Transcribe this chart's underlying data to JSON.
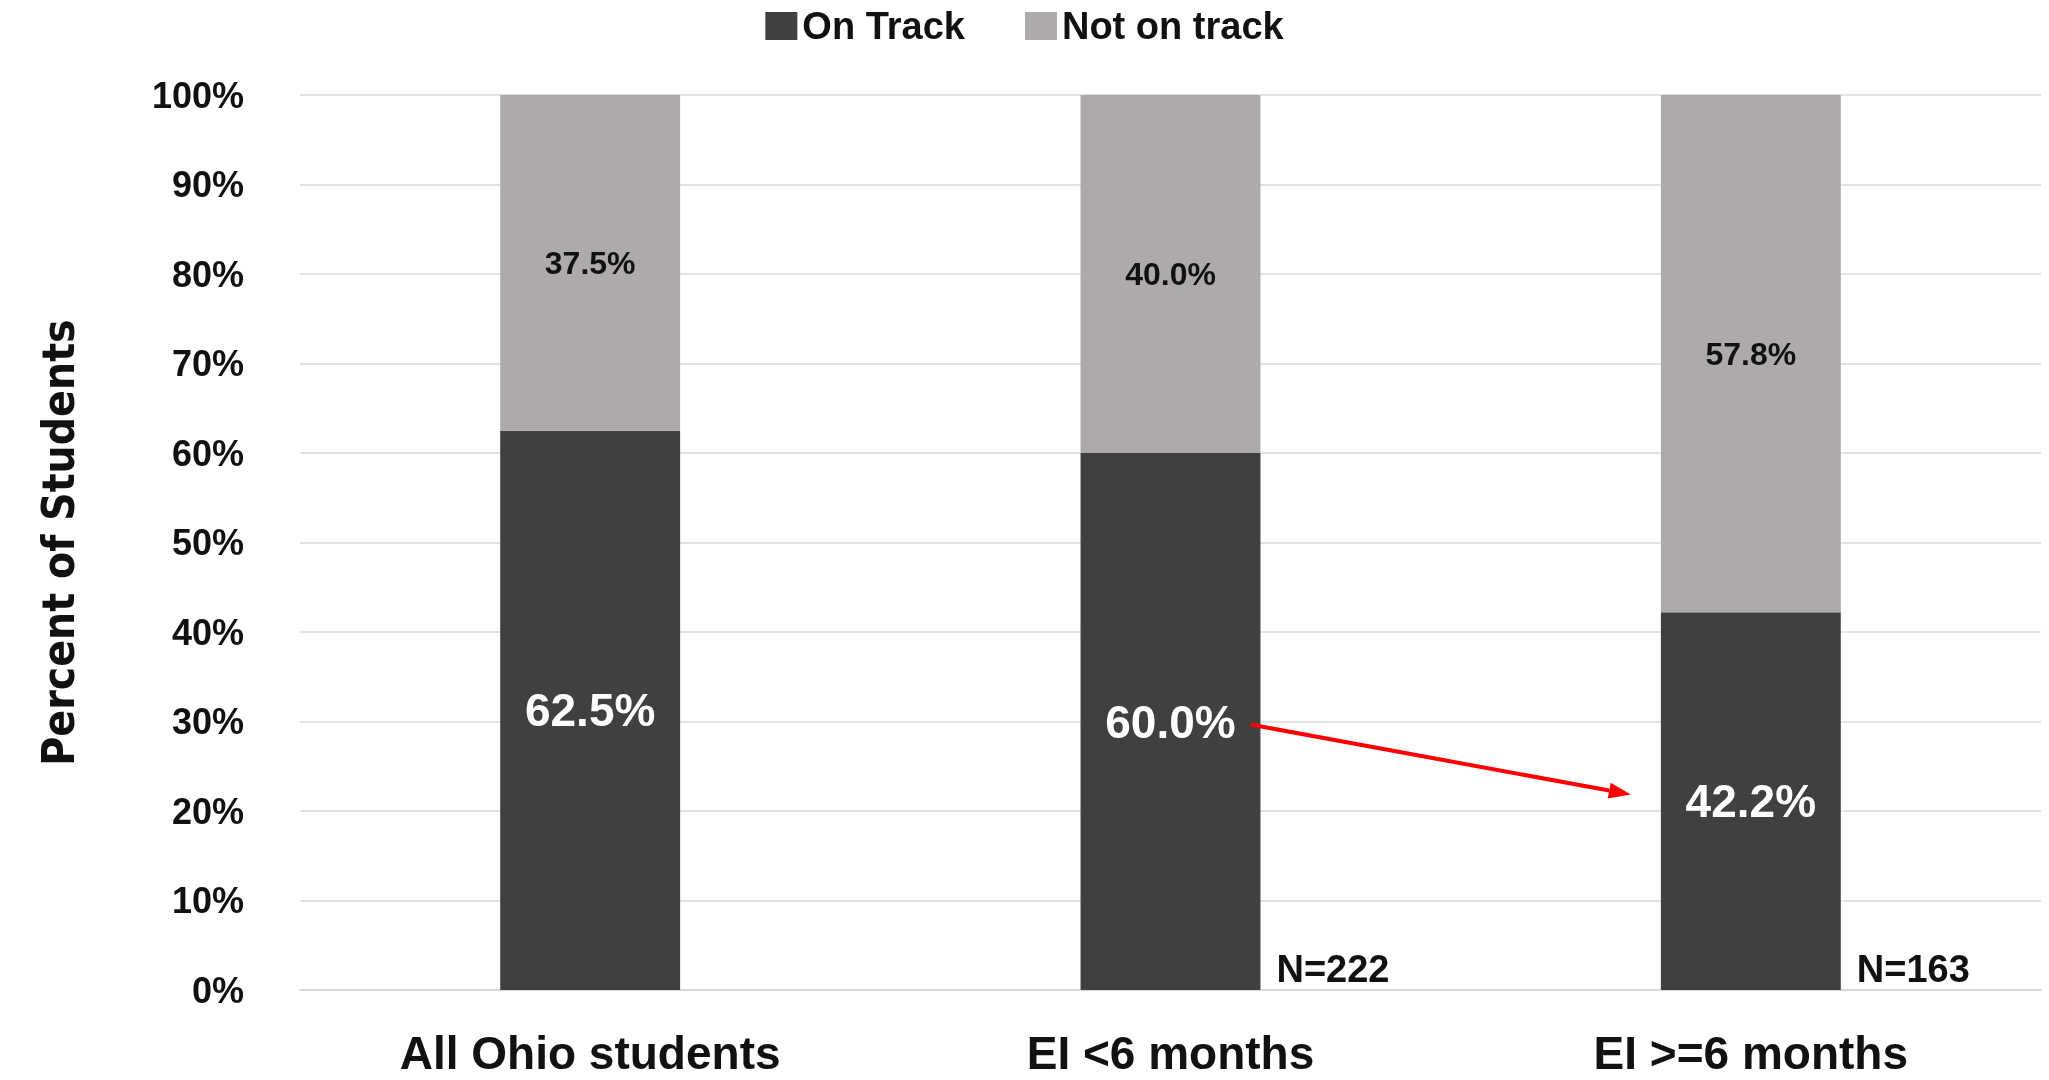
{
  "chart_data": {
    "type": "bar",
    "stacked": true,
    "ylabel": "Percent of Students",
    "categories": [
      "All Ohio students",
      "EI <6 months",
      "EI >=6 months"
    ],
    "series": [
      {
        "name": "On Track",
        "color": "#404040",
        "values": [
          62.5,
          60.0,
          42.2
        ],
        "value_labels": [
          "62.5%",
          "60.0%",
          "42.2%"
        ]
      },
      {
        "name": "Not on track",
        "color": "#aeaaaa",
        "values": [
          37.5,
          40.0,
          57.8
        ],
        "value_labels": [
          "37.5%",
          "40.0%",
          "57.8%"
        ]
      }
    ],
    "ylim": [
      0,
      100
    ],
    "yticks": [
      {
        "value": 0,
        "label": "0%"
      },
      {
        "value": 10,
        "label": "10%"
      },
      {
        "value": 20,
        "label": "20%"
      },
      {
        "value": 30,
        "label": "30%"
      },
      {
        "value": 40,
        "label": "40%"
      },
      {
        "value": 50,
        "label": "50%"
      },
      {
        "value": 60,
        "label": "60%"
      },
      {
        "value": 70,
        "label": "70%"
      },
      {
        "value": 80,
        "label": "80%"
      },
      {
        "value": 90,
        "label": "90%"
      },
      {
        "value": 100,
        "label": "100%"
      }
    ],
    "grid": "y",
    "legend": "top",
    "annotations": [
      {
        "text": "N=222",
        "x": "EI <6 months",
        "y": 0
      },
      {
        "text": "N=163",
        "x": "EI >=6 months",
        "y": 0
      }
    ]
  }
}
